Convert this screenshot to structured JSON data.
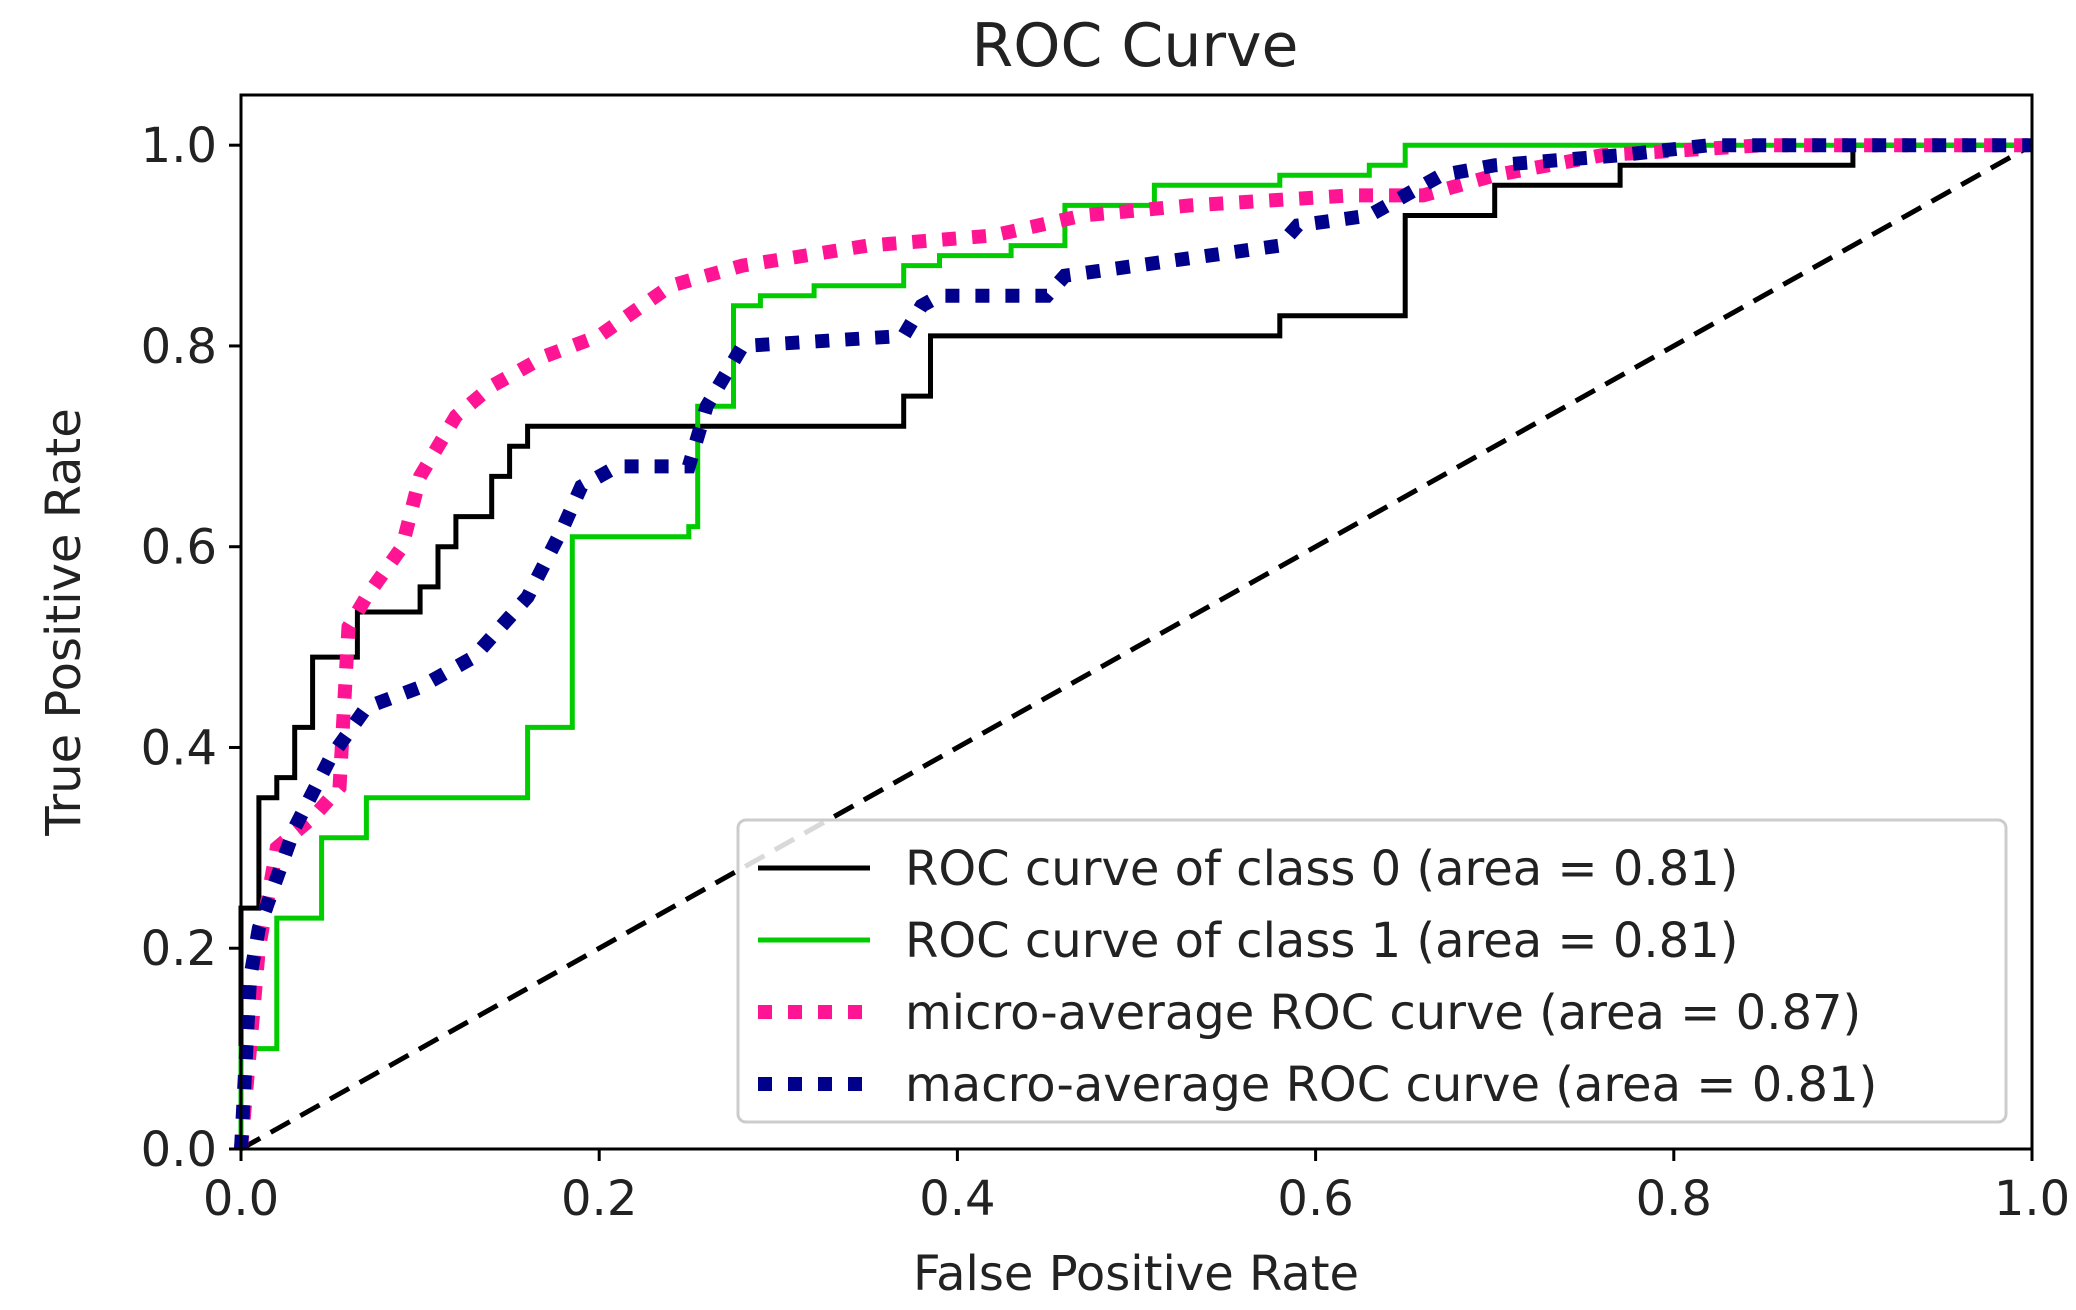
{
  "chart_data": {
    "type": "line",
    "title": "ROC Curve",
    "xlabel": "False Positive Rate",
    "ylabel": "True Positive Rate",
    "xlim": [
      0.0,
      1.0
    ],
    "ylim": [
      0.0,
      1.05
    ],
    "xticks": [
      "0.0",
      "0.2",
      "0.4",
      "0.6",
      "0.8",
      "1.0"
    ],
    "yticks": [
      "0.0",
      "0.2",
      "0.4",
      "0.6",
      "0.8",
      "1.0"
    ],
    "grid": false,
    "legend_position": "lower-right",
    "series": [
      {
        "name": "ROC curve of class 0 (area = 0.81)",
        "color": "#000000",
        "style": "solid",
        "x": [
          0.0,
          0.0,
          0.01,
          0.01,
          0.02,
          0.02,
          0.03,
          0.03,
          0.04,
          0.04,
          0.065,
          0.065,
          0.1,
          0.1,
          0.11,
          0.11,
          0.12,
          0.12,
          0.14,
          0.14,
          0.15,
          0.15,
          0.16,
          0.16,
          0.37,
          0.37,
          0.385,
          0.385,
          0.58,
          0.58,
          0.65,
          0.65,
          0.7,
          0.7,
          0.77,
          0.77,
          0.9,
          0.9,
          1.0
        ],
        "y": [
          0.0,
          0.24,
          0.24,
          0.35,
          0.35,
          0.37,
          0.37,
          0.42,
          0.42,
          0.49,
          0.49,
          0.535,
          0.535,
          0.56,
          0.56,
          0.6,
          0.6,
          0.63,
          0.63,
          0.67,
          0.67,
          0.7,
          0.7,
          0.72,
          0.72,
          0.75,
          0.75,
          0.81,
          0.81,
          0.83,
          0.83,
          0.93,
          0.93,
          0.96,
          0.96,
          0.98,
          0.98,
          1.0,
          1.0
        ]
      },
      {
        "name": "ROC curve of class 1 (area = 0.81)",
        "color": "#00cc00",
        "style": "solid",
        "x": [
          0.0,
          0.0,
          0.02,
          0.02,
          0.045,
          0.045,
          0.07,
          0.07,
          0.16,
          0.16,
          0.185,
          0.185,
          0.25,
          0.25,
          0.255,
          0.255,
          0.275,
          0.275,
          0.29,
          0.29,
          0.32,
          0.32,
          0.37,
          0.37,
          0.39,
          0.39,
          0.43,
          0.43,
          0.46,
          0.46,
          0.51,
          0.51,
          0.58,
          0.58,
          0.63,
          0.63,
          0.65,
          0.65,
          1.0
        ],
        "y": [
          0.0,
          0.1,
          0.1,
          0.23,
          0.23,
          0.31,
          0.31,
          0.35,
          0.35,
          0.42,
          0.42,
          0.61,
          0.61,
          0.62,
          0.62,
          0.74,
          0.74,
          0.84,
          0.84,
          0.85,
          0.85,
          0.86,
          0.86,
          0.88,
          0.88,
          0.89,
          0.89,
          0.9,
          0.9,
          0.94,
          0.94,
          0.96,
          0.96,
          0.97,
          0.97,
          0.98,
          0.98,
          1.0,
          1.0
        ]
      },
      {
        "name": "micro-average ROC curve (area = 0.87)",
        "color": "#ff1493",
        "style": "dotted",
        "x": [
          0.0,
          0.005,
          0.01,
          0.02,
          0.04,
          0.055,
          0.06,
          0.07,
          0.09,
          0.1,
          0.12,
          0.14,
          0.17,
          0.2,
          0.24,
          0.28,
          0.35,
          0.42,
          0.47,
          0.53,
          0.62,
          0.66,
          0.7,
          0.76,
          0.85,
          1.0
        ],
        "y": [
          0.0,
          0.1,
          0.2,
          0.3,
          0.33,
          0.36,
          0.52,
          0.55,
          0.6,
          0.67,
          0.73,
          0.76,
          0.79,
          0.81,
          0.86,
          0.88,
          0.9,
          0.91,
          0.93,
          0.94,
          0.95,
          0.95,
          0.97,
          0.99,
          1.0,
          1.0
        ]
      },
      {
        "name": "macro-average ROC curve (area = 0.81)",
        "color": "#00008b",
        "style": "dotted",
        "x": [
          0.0,
          0.005,
          0.01,
          0.02,
          0.03,
          0.05,
          0.07,
          0.1,
          0.13,
          0.16,
          0.18,
          0.19,
          0.21,
          0.25,
          0.26,
          0.27,
          0.28,
          0.37,
          0.38,
          0.39,
          0.45,
          0.46,
          0.58,
          0.59,
          0.63,
          0.65,
          0.67,
          0.7,
          0.77,
          0.82,
          1.0
        ],
        "y": [
          0.0,
          0.17,
          0.22,
          0.27,
          0.32,
          0.39,
          0.44,
          0.46,
          0.49,
          0.55,
          0.62,
          0.66,
          0.68,
          0.68,
          0.74,
          0.77,
          0.8,
          0.81,
          0.84,
          0.85,
          0.85,
          0.87,
          0.9,
          0.92,
          0.93,
          0.95,
          0.97,
          0.98,
          0.99,
          1.0,
          1.0
        ]
      },
      {
        "name": "chance diagonal",
        "color": "#000000",
        "style": "dashed",
        "legend": false,
        "x": [
          0.0,
          1.0
        ],
        "y": [
          0.0,
          1.0
        ]
      }
    ]
  }
}
